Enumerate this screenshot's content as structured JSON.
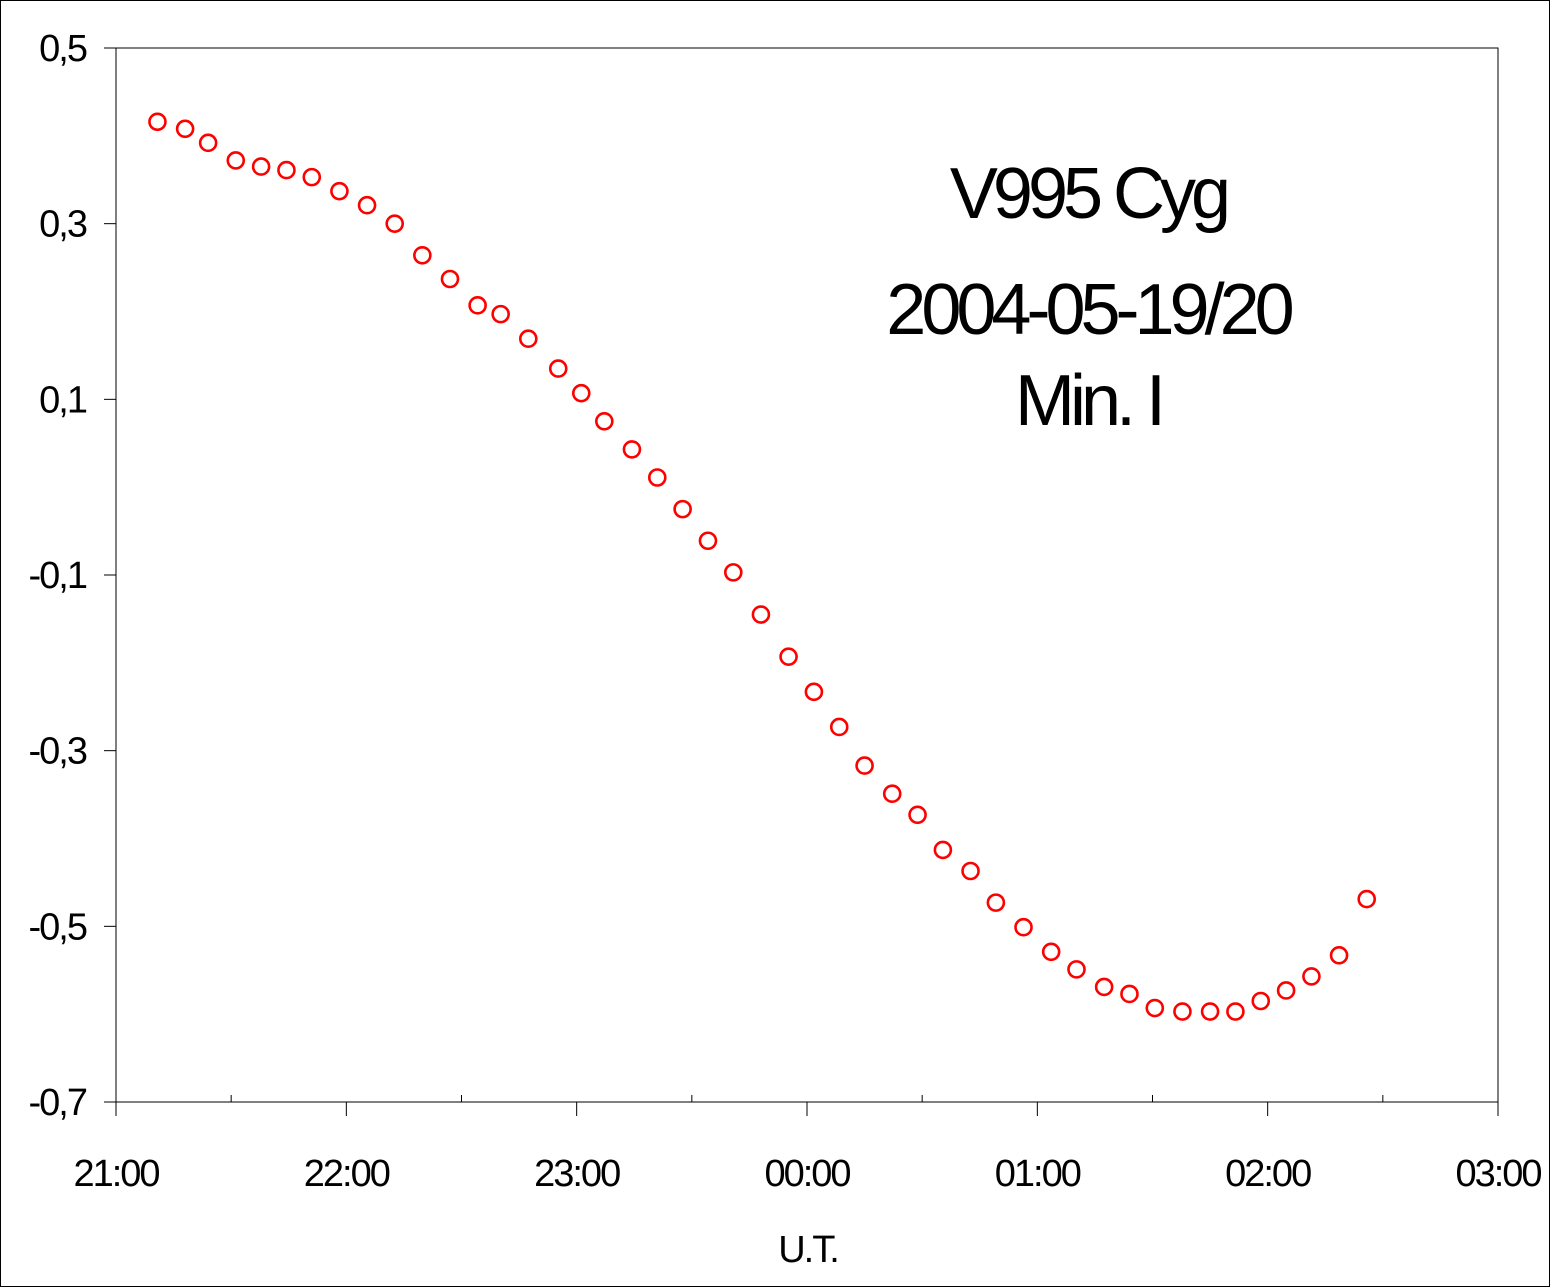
{
  "chart_data": {
    "type": "scatter",
    "title": "",
    "annotation_lines": [
      "V995 Cyg",
      "2004-05-19/20",
      "Min. I"
    ],
    "xlabel": "U.T.",
    "ylabel": "",
    "x_unit": "hours",
    "xlim": [
      21.0,
      27.0
    ],
    "ylim": [
      -0.7,
      0.5
    ],
    "x_ticks": [
      21,
      22,
      23,
      24,
      25,
      26,
      27
    ],
    "x_tick_labels": [
      "21:00",
      "22:00",
      "23:00",
      "00:00",
      "01:00",
      "02:00",
      "03:00"
    ],
    "y_ticks": [
      0.5,
      0.3,
      0.1,
      -0.1,
      -0.3,
      -0.5,
      -0.7
    ],
    "y_tick_labels": [
      "0,5",
      "0,3",
      "0,1",
      "-0,1",
      "-0,3",
      "-0,5",
      "-0,7"
    ],
    "grid": false,
    "marker": "open-circle",
    "marker_color": "#ff0000",
    "series": [
      {
        "x": [
          21.18,
          21.3,
          21.4,
          21.52,
          21.63,
          21.74,
          21.85,
          21.97,
          22.09,
          22.21,
          22.33,
          22.45,
          22.57,
          22.67,
          22.79,
          22.92,
          23.02,
          23.12,
          23.24,
          23.35,
          23.46,
          23.57,
          23.68,
          23.8,
          23.92,
          24.03,
          24.14,
          24.25,
          24.37,
          24.48,
          24.59,
          24.71,
          24.82,
          24.94,
          25.06,
          25.17,
          25.29,
          25.4,
          25.51,
          25.63,
          25.75,
          25.86,
          25.97,
          26.08,
          26.19,
          26.31,
          26.43
        ],
        "y": [
          0.416,
          0.408,
          0.392,
          0.372,
          0.365,
          0.361,
          0.353,
          0.337,
          0.321,
          0.3,
          0.264,
          0.237,
          0.207,
          0.197,
          0.169,
          0.135,
          0.107,
          0.075,
          0.043,
          0.011,
          -0.025,
          -0.061,
          -0.097,
          -0.145,
          -0.193,
          -0.233,
          -0.273,
          -0.317,
          -0.349,
          -0.373,
          -0.413,
          -0.437,
          -0.473,
          -0.501,
          -0.529,
          -0.549,
          -0.569,
          -0.577,
          -0.593,
          -0.597,
          -0.597,
          -0.597,
          -0.585,
          -0.573,
          -0.557,
          -0.533,
          -0.469
        ]
      }
    ]
  }
}
